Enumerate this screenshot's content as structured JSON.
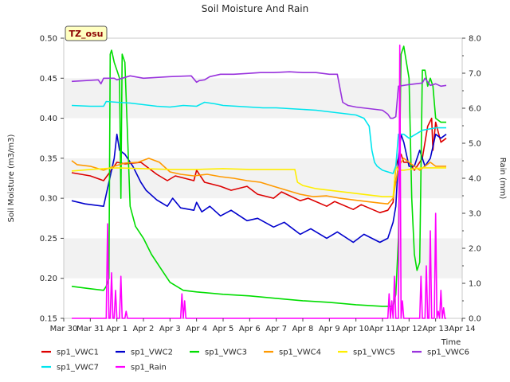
{
  "chart_data": {
    "type": "line",
    "title": "Soil Moisture And Rain",
    "site_label": "TZ_osu",
    "ylabel": "Soil Moisture (m3/m3)",
    "y2label": "Rain (mm)",
    "xlabel": "Time",
    "ylim": [
      0.15,
      0.5
    ],
    "y2lim": [
      0.0,
      8.0
    ],
    "xlim": [
      0,
      15
    ],
    "grid": "horizontal bands",
    "legend_placement": "bottom",
    "x_ticks": [
      {
        "v": 0,
        "label": "Mar 30"
      },
      {
        "v": 1,
        "label": "Mar 31"
      },
      {
        "v": 2,
        "label": "Apr 1"
      },
      {
        "v": 3,
        "label": "Apr 2"
      },
      {
        "v": 4,
        "label": "Apr 3"
      },
      {
        "v": 5,
        "label": "Apr 4"
      },
      {
        "v": 6,
        "label": "Apr 5"
      },
      {
        "v": 7,
        "label": "Apr 6"
      },
      {
        "v": 8,
        "label": "Apr 7"
      },
      {
        "v": 9,
        "label": "Apr 8"
      },
      {
        "v": 10,
        "label": "Apr 9"
      },
      {
        "v": 11,
        "label": "Apr 10"
      },
      {
        "v": 12,
        "label": "Apr 11"
      },
      {
        "v": 13,
        "label": "Apr 12"
      },
      {
        "v": 14,
        "label": "Apr 13"
      },
      {
        "v": 15,
        "label": "Apr 14"
      }
    ],
    "y_ticks": [
      "0.15",
      "0.20",
      "0.25",
      "0.30",
      "0.35",
      "0.40",
      "0.45",
      "0.50"
    ],
    "y2_ticks": [
      "0.0",
      "1.0",
      "2.0",
      "3.0",
      "4.0",
      "5.0",
      "6.0",
      "7.0",
      "8.0"
    ],
    "series": [
      {
        "name": "sp1_VWC1",
        "color": "#dd0000",
        "axis": "left",
        "x": [
          0.3,
          1.0,
          1.5,
          1.9,
          2.0,
          2.3,
          2.9,
          3.5,
          3.9,
          4.2,
          4.9,
          5.0,
          5.3,
          5.9,
          6.3,
          6.9,
          7.3,
          7.9,
          8.2,
          8.9,
          9.2,
          9.9,
          10.2,
          10.9,
          11.2,
          11.9,
          12.2,
          12.4,
          12.5,
          12.6,
          12.7,
          12.8,
          13.0,
          13.2,
          13.3,
          13.5,
          13.7,
          13.85,
          13.9,
          14.0,
          14.2,
          14.4
        ],
        "y": [
          0.332,
          0.328,
          0.322,
          0.34,
          0.345,
          0.343,
          0.345,
          0.33,
          0.322,
          0.328,
          0.322,
          0.335,
          0.32,
          0.315,
          0.31,
          0.315,
          0.305,
          0.3,
          0.308,
          0.297,
          0.3,
          0.29,
          0.296,
          0.286,
          0.292,
          0.282,
          0.285,
          0.295,
          0.34,
          0.35,
          0.355,
          0.345,
          0.345,
          0.335,
          0.34,
          0.35,
          0.39,
          0.4,
          0.36,
          0.395,
          0.37,
          0.375
        ]
      },
      {
        "name": "sp1_VWC2",
        "color": "#0000cc",
        "axis": "left",
        "x": [
          0.3,
          0.8,
          1.5,
          1.9,
          2.0,
          2.1,
          2.3,
          2.6,
          2.9,
          3.1,
          3.5,
          3.9,
          4.1,
          4.4,
          4.9,
          5.0,
          5.2,
          5.5,
          5.9,
          6.3,
          6.9,
          7.3,
          7.9,
          8.3,
          8.9,
          9.3,
          9.9,
          10.3,
          10.9,
          11.3,
          11.9,
          12.2,
          12.4,
          12.5,
          12.6,
          12.7,
          12.8,
          13.0,
          13.2,
          13.4,
          13.6,
          13.8,
          14.0,
          14.2,
          14.4
        ],
        "y": [
          0.297,
          0.293,
          0.29,
          0.35,
          0.38,
          0.36,
          0.355,
          0.34,
          0.32,
          0.31,
          0.298,
          0.29,
          0.3,
          0.288,
          0.285,
          0.295,
          0.283,
          0.29,
          0.278,
          0.285,
          0.272,
          0.275,
          0.264,
          0.27,
          0.255,
          0.262,
          0.25,
          0.258,
          0.245,
          0.255,
          0.245,
          0.25,
          0.27,
          0.29,
          0.35,
          0.38,
          0.37,
          0.34,
          0.34,
          0.36,
          0.34,
          0.35,
          0.38,
          0.375,
          0.38
        ]
      },
      {
        "name": "sp1_VWC3",
        "color": "#00dd00",
        "axis": "left",
        "x": [
          0.3,
          1.0,
          1.5,
          1.6,
          1.7,
          1.75,
          1.8,
          1.9,
          2.0,
          2.1,
          2.15,
          2.2,
          2.3,
          2.5,
          2.7,
          3.0,
          3.3,
          3.7,
          4.0,
          4.5,
          5.0,
          6.0,
          7.0,
          8.0,
          9.0,
          10.0,
          11.0,
          12.0,
          12.4,
          12.5,
          12.6,
          12.7,
          12.8,
          12.9,
          13.0,
          13.1,
          13.2,
          13.3,
          13.4,
          13.5,
          13.6,
          13.7,
          13.8,
          13.9,
          14.0,
          14.2,
          14.4
        ],
        "y": [
          0.19,
          0.187,
          0.185,
          0.19,
          0.2,
          0.48,
          0.485,
          0.47,
          0.46,
          0.45,
          0.3,
          0.48,
          0.47,
          0.29,
          0.265,
          0.25,
          0.23,
          0.21,
          0.195,
          0.185,
          0.183,
          0.18,
          0.178,
          0.175,
          0.172,
          0.17,
          0.167,
          0.165,
          0.165,
          0.18,
          0.25,
          0.48,
          0.49,
          0.47,
          0.45,
          0.3,
          0.23,
          0.21,
          0.22,
          0.46,
          0.46,
          0.44,
          0.45,
          0.44,
          0.4,
          0.395,
          0.395
        ]
      },
      {
        "name": "sp1_VWC4",
        "color": "#ff9900",
        "axis": "left",
        "x": [
          0.3,
          0.5,
          1.0,
          1.5,
          1.9,
          2.3,
          2.8,
          3.2,
          3.6,
          4.0,
          4.4,
          4.9,
          5.4,
          5.9,
          6.4,
          6.9,
          7.4,
          7.9,
          8.4,
          8.9,
          9.4,
          9.9,
          10.4,
          10.9,
          11.4,
          11.9,
          12.2,
          12.4,
          12.6,
          12.8,
          13.0,
          13.2,
          13.4,
          13.6,
          13.8,
          14.0,
          14.2,
          14.4
        ],
        "y": [
          0.347,
          0.342,
          0.34,
          0.335,
          0.34,
          0.344,
          0.345,
          0.35,
          0.345,
          0.333,
          0.33,
          0.328,
          0.33,
          0.327,
          0.325,
          0.322,
          0.32,
          0.315,
          0.31,
          0.305,
          0.302,
          0.303,
          0.3,
          0.298,
          0.296,
          0.294,
          0.293,
          0.3,
          0.34,
          0.35,
          0.345,
          0.34,
          0.335,
          0.34,
          0.345,
          0.34,
          0.34,
          0.34
        ]
      },
      {
        "name": "sp1_VWC5",
        "color": "#ffee00",
        "axis": "left",
        "x": [
          0.3,
          1.0,
          2.0,
          3.0,
          4.0,
          5.0,
          6.0,
          7.0,
          8.0,
          8.7,
          8.8,
          9.0,
          9.5,
          10.0,
          10.5,
          11.0,
          11.5,
          12.0,
          12.4,
          12.5,
          12.6,
          12.8,
          13.0,
          13.5,
          14.0,
          14.4
        ],
        "y": [
          0.334,
          0.336,
          0.338,
          0.337,
          0.336,
          0.336,
          0.337,
          0.336,
          0.336,
          0.336,
          0.32,
          0.316,
          0.312,
          0.31,
          0.308,
          0.306,
          0.304,
          0.302,
          0.302,
          0.34,
          0.335,
          0.335,
          0.336,
          0.338,
          0.338,
          0.338
        ]
      },
      {
        "name": "sp1_VWC6",
        "color": "#9933dd",
        "axis": "left",
        "x": [
          0.3,
          0.8,
          1.3,
          1.4,
          1.5,
          1.9,
          2.0,
          2.5,
          3.0,
          3.5,
          4.0,
          4.8,
          5.0,
          5.1,
          5.3,
          5.5,
          5.9,
          6.4,
          6.9,
          7.4,
          7.9,
          8.5,
          9.0,
          9.5,
          10.0,
          10.3,
          10.5,
          10.6,
          10.7,
          11.0,
          11.5,
          12.0,
          12.2,
          12.3,
          12.4,
          12.5,
          12.6,
          12.8,
          13.0,
          13.5,
          13.6,
          13.8,
          14.0,
          14.2,
          14.4
        ],
        "y": [
          0.446,
          0.447,
          0.448,
          0.443,
          0.45,
          0.45,
          0.448,
          0.453,
          0.45,
          0.451,
          0.452,
          0.453,
          0.445,
          0.447,
          0.448,
          0.452,
          0.455,
          0.455,
          0.456,
          0.457,
          0.457,
          0.458,
          0.457,
          0.457,
          0.455,
          0.455,
          0.42,
          0.418,
          0.416,
          0.414,
          0.412,
          0.41,
          0.405,
          0.4,
          0.4,
          0.402,
          0.44,
          0.441,
          0.442,
          0.444,
          0.45,
          0.441,
          0.443,
          0.44,
          0.441
        ]
      },
      {
        "name": "sp1_VWC7",
        "color": "#00e5ee",
        "axis": "left",
        "x": [
          0.3,
          1.0,
          1.5,
          1.6,
          2.0,
          2.5,
          3.0,
          3.5,
          4.0,
          4.5,
          5.0,
          5.3,
          5.7,
          6.0,
          6.5,
          7.0,
          7.5,
          8.0,
          8.5,
          9.0,
          9.5,
          10.0,
          10.5,
          11.0,
          11.3,
          11.5,
          11.6,
          11.7,
          11.8,
          12.0,
          12.2,
          12.4,
          12.5,
          12.6,
          12.8,
          13.0,
          13.5,
          14.0,
          14.4
        ],
        "y": [
          0.416,
          0.415,
          0.415,
          0.421,
          0.42,
          0.419,
          0.417,
          0.415,
          0.414,
          0.416,
          0.415,
          0.42,
          0.418,
          0.416,
          0.415,
          0.414,
          0.413,
          0.413,
          0.412,
          0.411,
          0.41,
          0.408,
          0.406,
          0.404,
          0.4,
          0.39,
          0.36,
          0.345,
          0.34,
          0.335,
          0.333,
          0.331,
          0.34,
          0.38,
          0.38,
          0.375,
          0.385,
          0.388,
          0.388
        ]
      },
      {
        "name": "sp1_Rain",
        "color": "#ff00ff",
        "axis": "right",
        "x": [
          0.3,
          1.6,
          1.65,
          1.7,
          1.75,
          1.8,
          1.85,
          1.9,
          1.95,
          2.0,
          2.05,
          2.1,
          2.15,
          2.2,
          2.25,
          2.3,
          2.35,
          2.4,
          2.45,
          2.5,
          2.55,
          4.4,
          4.45,
          4.5,
          4.55,
          4.6,
          4.65,
          12.2,
          12.25,
          12.3,
          12.35,
          12.4,
          12.45,
          12.5,
          12.55,
          12.6,
          12.65,
          12.7,
          12.75,
          12.8,
          12.85,
          12.9,
          12.95,
          13.0,
          13.05,
          13.1,
          13.15,
          13.2,
          13.25,
          13.3,
          13.35,
          13.4,
          13.45,
          13.5,
          13.55,
          13.6,
          13.65,
          13.7,
          13.75,
          13.8,
          13.85,
          13.9,
          13.95,
          14.0,
          14.05,
          14.1,
          14.15,
          14.2,
          14.25,
          14.3,
          14.35,
          14.4
        ],
        "y": [
          0,
          0,
          2.7,
          0,
          0,
          1.3,
          0,
          0,
          0.8,
          0,
          0,
          0,
          1.2,
          0,
          0,
          0,
          0.2,
          0,
          0,
          0,
          0,
          0,
          0.7,
          0,
          0.5,
          0,
          0,
          0,
          0.7,
          0,
          0.5,
          0,
          1.2,
          0,
          0,
          0,
          7.8,
          0,
          0.5,
          0,
          0,
          0,
          0,
          0,
          0,
          0,
          0,
          0,
          0,
          0,
          0,
          0,
          1.2,
          0,
          0,
          0,
          1.5,
          0,
          0,
          2.5,
          0,
          0,
          0,
          3.0,
          0,
          0.2,
          0,
          0.8,
          0,
          0.3,
          0,
          0
        ]
      }
    ]
  }
}
